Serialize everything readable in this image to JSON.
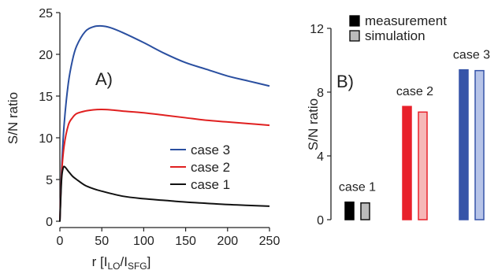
{
  "chart_data": [
    {
      "type": "line",
      "panel_label": "A)",
      "xlabel_main": "r [I",
      "xlabel_sub1": "LO",
      "xlabel_sep": "/I",
      "xlabel_sub2": "SFG",
      "xlabel_end": "]",
      "ylabel": "S/N ratio",
      "xlim": [
        0,
        250
      ],
      "ylim": [
        0,
        25
      ],
      "xticks": [
        0,
        50,
        100,
        150,
        200,
        250
      ],
      "yticks": [
        0,
        5,
        10,
        15,
        20,
        25
      ],
      "legend_placement": "center-right",
      "series": [
        {
          "name": "case 3",
          "color": "#2a4fa0",
          "x": [
            0,
            2,
            5,
            10,
            15,
            20,
            30,
            40,
            50,
            60,
            75,
            100,
            125,
            150,
            175,
            200,
            225,
            250
          ],
          "y": [
            0,
            6,
            11.5,
            16.5,
            19.3,
            21.0,
            22.7,
            23.3,
            23.4,
            23.2,
            22.6,
            21.4,
            20.1,
            19.0,
            18.2,
            17.4,
            16.8,
            16.2
          ]
        },
        {
          "name": "case 2",
          "color": "#e02020",
          "x": [
            0,
            2,
            5,
            10,
            15,
            20,
            30,
            40,
            50,
            60,
            75,
            100,
            125,
            150,
            175,
            200,
            225,
            250
          ],
          "y": [
            0,
            5.5,
            9.0,
            11.5,
            12.4,
            12.9,
            13.2,
            13.35,
            13.4,
            13.35,
            13.2,
            13.0,
            12.7,
            12.4,
            12.1,
            11.9,
            11.7,
            11.5
          ]
        },
        {
          "name": "case 1",
          "color": "#111111",
          "x": [
            0,
            2,
            4,
            6,
            10,
            15,
            20,
            30,
            40,
            50,
            75,
            100,
            125,
            150,
            175,
            200,
            225,
            250
          ],
          "y": [
            0,
            5.0,
            6.4,
            6.5,
            6.0,
            5.4,
            5.0,
            4.3,
            3.9,
            3.6,
            3.0,
            2.7,
            2.5,
            2.3,
            2.15,
            2.0,
            1.9,
            1.8
          ]
        }
      ]
    },
    {
      "type": "bar",
      "panel_label": "B)",
      "ylabel": "S/N ratio",
      "ylim": [
        0,
        12
      ],
      "yticks": [
        0,
        4,
        8,
        12
      ],
      "legend_placement": "top",
      "legend": [
        {
          "name": "measurement",
          "fill": "#000000",
          "stroke": "#000000"
        },
        {
          "name": "simulation",
          "fill": "#bbbbbb",
          "stroke": "#000000"
        }
      ],
      "groups": [
        {
          "label": "case 1",
          "measurement": 1.1,
          "simulation": 1.05,
          "m_fill": "#000000",
          "m_stroke": "#000000",
          "s_fill": "#bbbbbb",
          "s_stroke": "#111111"
        },
        {
          "label": "case 2",
          "measurement": 7.1,
          "simulation": 6.75,
          "m_fill": "#e8202a",
          "m_stroke": "#e8202a",
          "s_fill": "#f6b7b7",
          "s_stroke": "#e8202a"
        },
        {
          "label": "case 3",
          "measurement": 9.4,
          "simulation": 9.35,
          "m_fill": "#3654a8",
          "m_stroke": "#3654a8",
          "s_fill": "#b7c4e8",
          "s_stroke": "#3654a8"
        }
      ]
    }
  ]
}
